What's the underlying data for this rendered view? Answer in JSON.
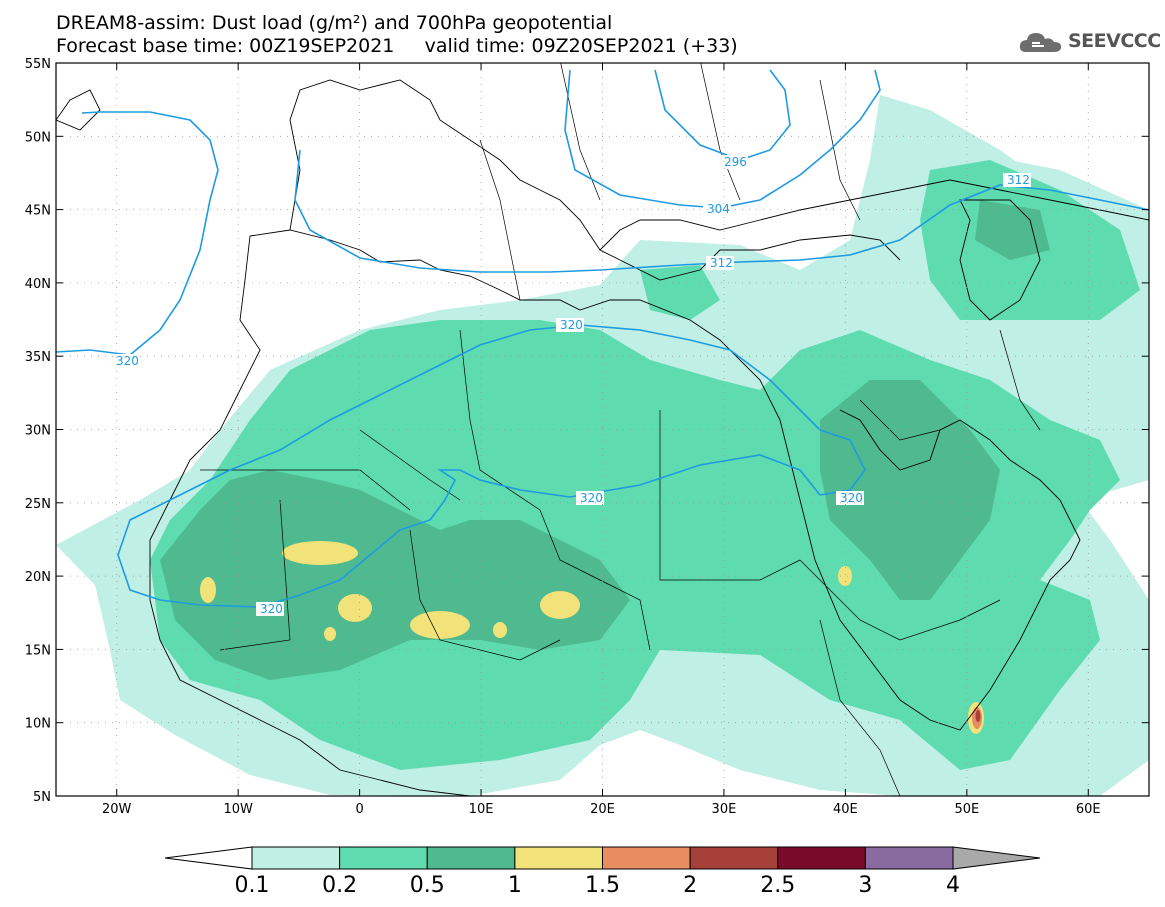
{
  "header": {
    "line1": "DREAM8-assim: Dust load (g/m²) and 700hPa geopotential",
    "line2": "Forecast base time: 00Z19SEP2021     valid time: 09Z20SEP2021 (+33)",
    "logo_text": "SEEVCCC",
    "logo_icon": "cloud-logo-icon"
  },
  "map": {
    "lat_ticks": [
      "55N",
      "50N",
      "45N",
      "40N",
      "35N",
      "30N",
      "25N",
      "20N",
      "15N",
      "10N",
      "5N"
    ],
    "lon_ticks": [
      "20W",
      "10W",
      "0",
      "10E",
      "20E",
      "30E",
      "40E",
      "50E",
      "60E"
    ],
    "lon_range": [
      -25,
      65
    ],
    "lat_range": [
      5,
      55
    ],
    "contour_color": "#1e9be0",
    "contour_labels": [
      "320",
      "320",
      "320",
      "320",
      "320",
      "312",
      "312",
      "304",
      "296"
    ]
  },
  "colorbar": {
    "labels": [
      "0.1",
      "0.2",
      "0.5",
      "1",
      "1.5",
      "2",
      "2.5",
      "3",
      "4"
    ],
    "colors": [
      "#c0efe6",
      "#5fdbb0",
      "#4fb98f",
      "#f2e27a",
      "#e88c62",
      "#a8403a",
      "#7a0a2a",
      "#8a6ba0"
    ],
    "under_color": "#ffffff",
    "over_color": "#a9a9a9"
  }
}
